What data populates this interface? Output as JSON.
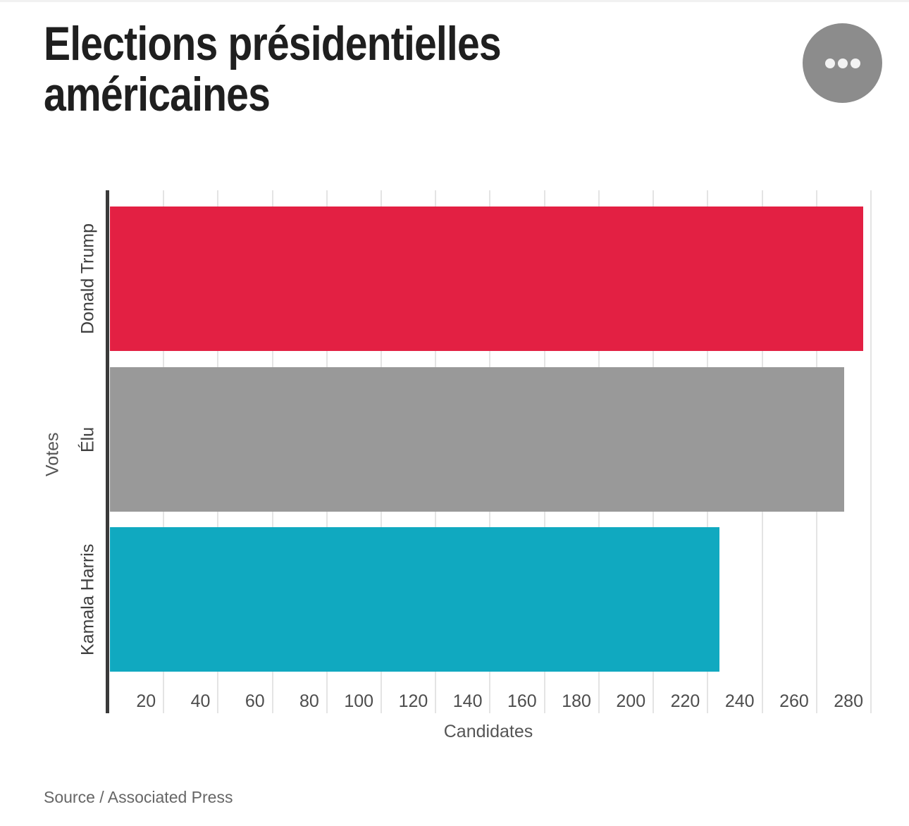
{
  "header": {
    "title_lines": [
      "Elections présidentielles",
      "américaines"
    ],
    "menu_icon": "ellipsis-icon"
  },
  "chart_data": {
    "type": "bar",
    "orientation": "horizontal",
    "title": "Elections présidentielles américaines",
    "categories": [
      "Donald Trump",
      "Élu",
      "Kamala Harris"
    ],
    "values": [
      277,
      270,
      224
    ],
    "colors": [
      "#e32043",
      "#999999",
      "#10a9c0"
    ],
    "xlabel": "Candidates",
    "ylabel": "Votes",
    "xlim": [
      0,
      290
    ],
    "xticks": [
      20,
      40,
      60,
      80,
      100,
      120,
      140,
      160,
      180,
      200,
      220,
      240,
      260,
      280
    ],
    "grid": true,
    "legend": false
  },
  "footer": {
    "source": "Source / Associated Press"
  },
  "colors": {
    "bar_red": "#e32043",
    "bar_gray": "#999999",
    "bar_teal": "#10a9c0",
    "axis_line": "#3a3a3a",
    "gridline": "#e4e4e4",
    "menu_circle": "#8c8c8c"
  }
}
